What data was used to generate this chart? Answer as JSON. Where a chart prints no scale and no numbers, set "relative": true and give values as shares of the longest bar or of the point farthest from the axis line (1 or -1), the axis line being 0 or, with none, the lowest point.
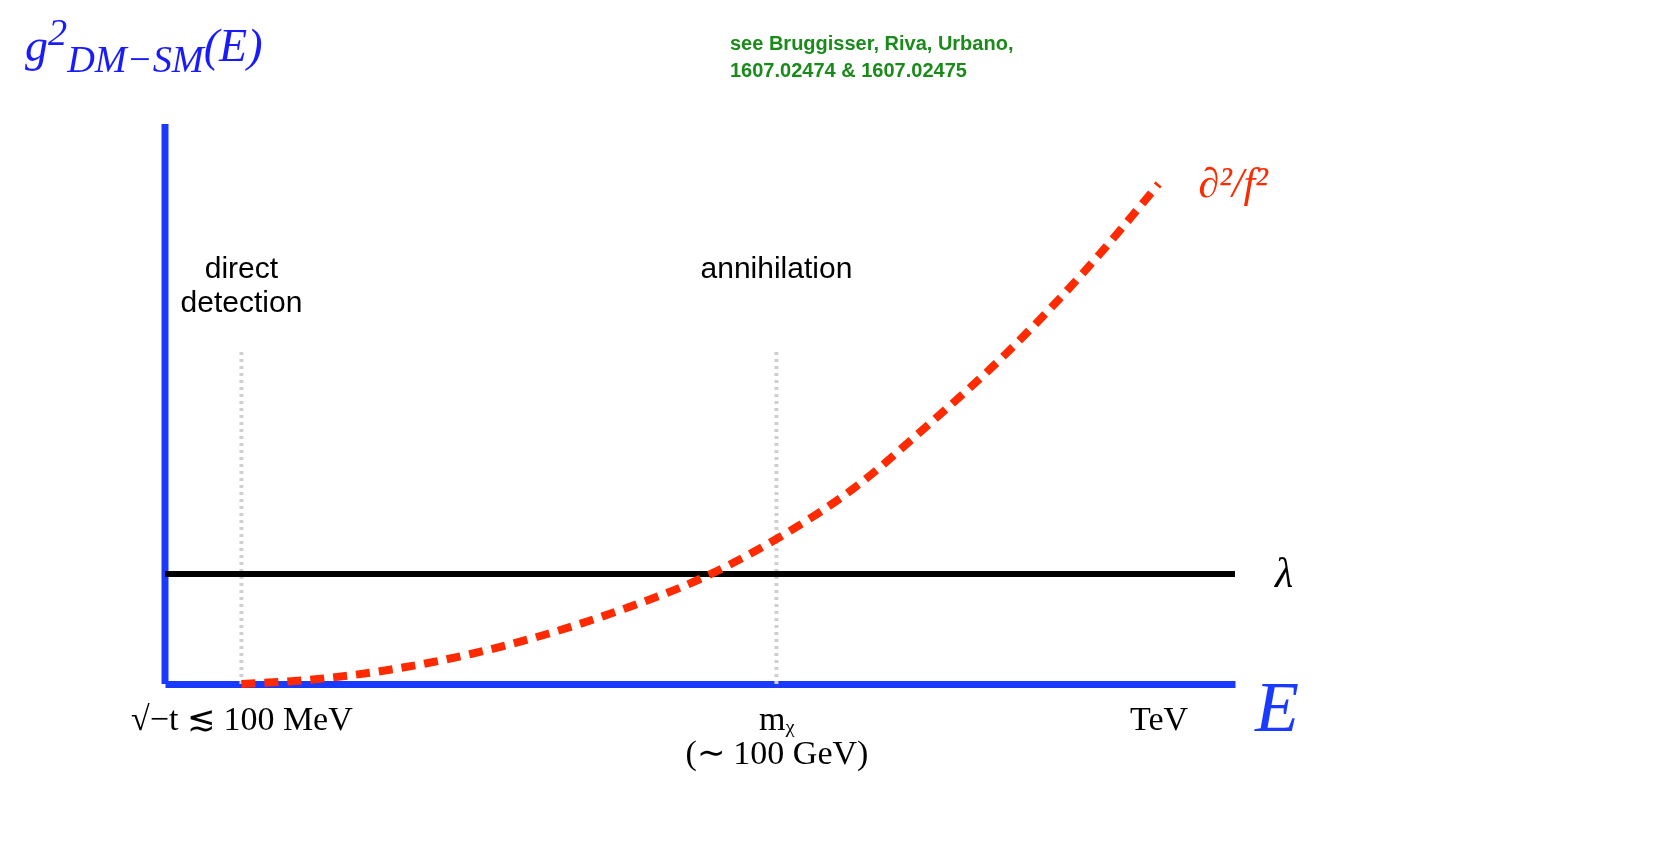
{
  "chart_data": {
    "type": "line",
    "relative": true,
    "ylabel": "g$^{2}$$_{DM−SM}$(E)",
    "xlabel": "E",
    "annotations": [
      "see Bruggisser, Riva, Urbano,\n1607.02474 & 1607.02475"
    ],
    "categories": [
      null,
      "√−t ≲ 100 MeV",
      null,
      null,
      null,
      null,
      null,
      null,
      "mᵪ\n(∼ 100 GeV)",
      null,
      null,
      null,
      null,
      "TeV",
      null
    ],
    "series": [
      {
        "name": "λ",
        "color": "#000000",
        "line_style": "solid",
        "values": [
          0.22,
          0.22,
          0.22,
          0.22,
          0.22,
          0.22,
          0.22,
          0.22,
          0.22,
          0.22,
          0.22,
          0.22,
          0.22,
          0.22,
          0.22
        ]
      },
      {
        "name": "∂²/f²",
        "color": "#ff2a00",
        "line_style": "dashed",
        "values": [
          null,
          0,
          0.01,
          0.03,
          0.06,
          0.1,
          0.15,
          0.21,
          0.29,
          0.39,
          0.52,
          0.66,
          0.82,
          1,
          null
        ]
      }
    ],
    "ref_lines": [
      {
        "axis": "x",
        "value": "√−t ≲ 100 MeV",
        "label": "direct\ndetection",
        "color": "#d0d0d0",
        "line_style": "dotted"
      },
      {
        "axis": "x",
        "value": "mᵪ\n(∼ 100 GeV)",
        "label": "annihilation",
        "color": "#d0d0d0",
        "line_style": "dotted"
      }
    ]
  }
}
